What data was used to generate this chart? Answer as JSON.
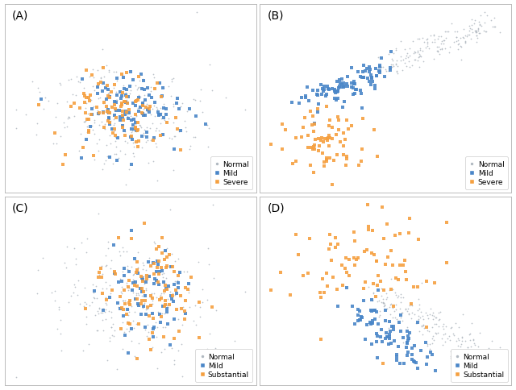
{
  "panels": [
    "A",
    "B",
    "C",
    "D"
  ],
  "colors": {
    "normal": "#b0b8c0",
    "mild": "#4a86c8",
    "severe_substantial": "#f5a040"
  },
  "legend_labels": {
    "A": [
      "Normal",
      "Mild",
      "Severe"
    ],
    "B": [
      "Normal",
      "Mild",
      "Severe"
    ],
    "C": [
      "Normal",
      "Mild",
      "Substantial"
    ],
    "D": [
      "Normal",
      "Mild",
      "Substantial"
    ]
  },
  "figsize": [
    6.4,
    4.85
  ],
  "dpi": 100,
  "background": "#ffffff",
  "border_color": "#bbbbbb"
}
